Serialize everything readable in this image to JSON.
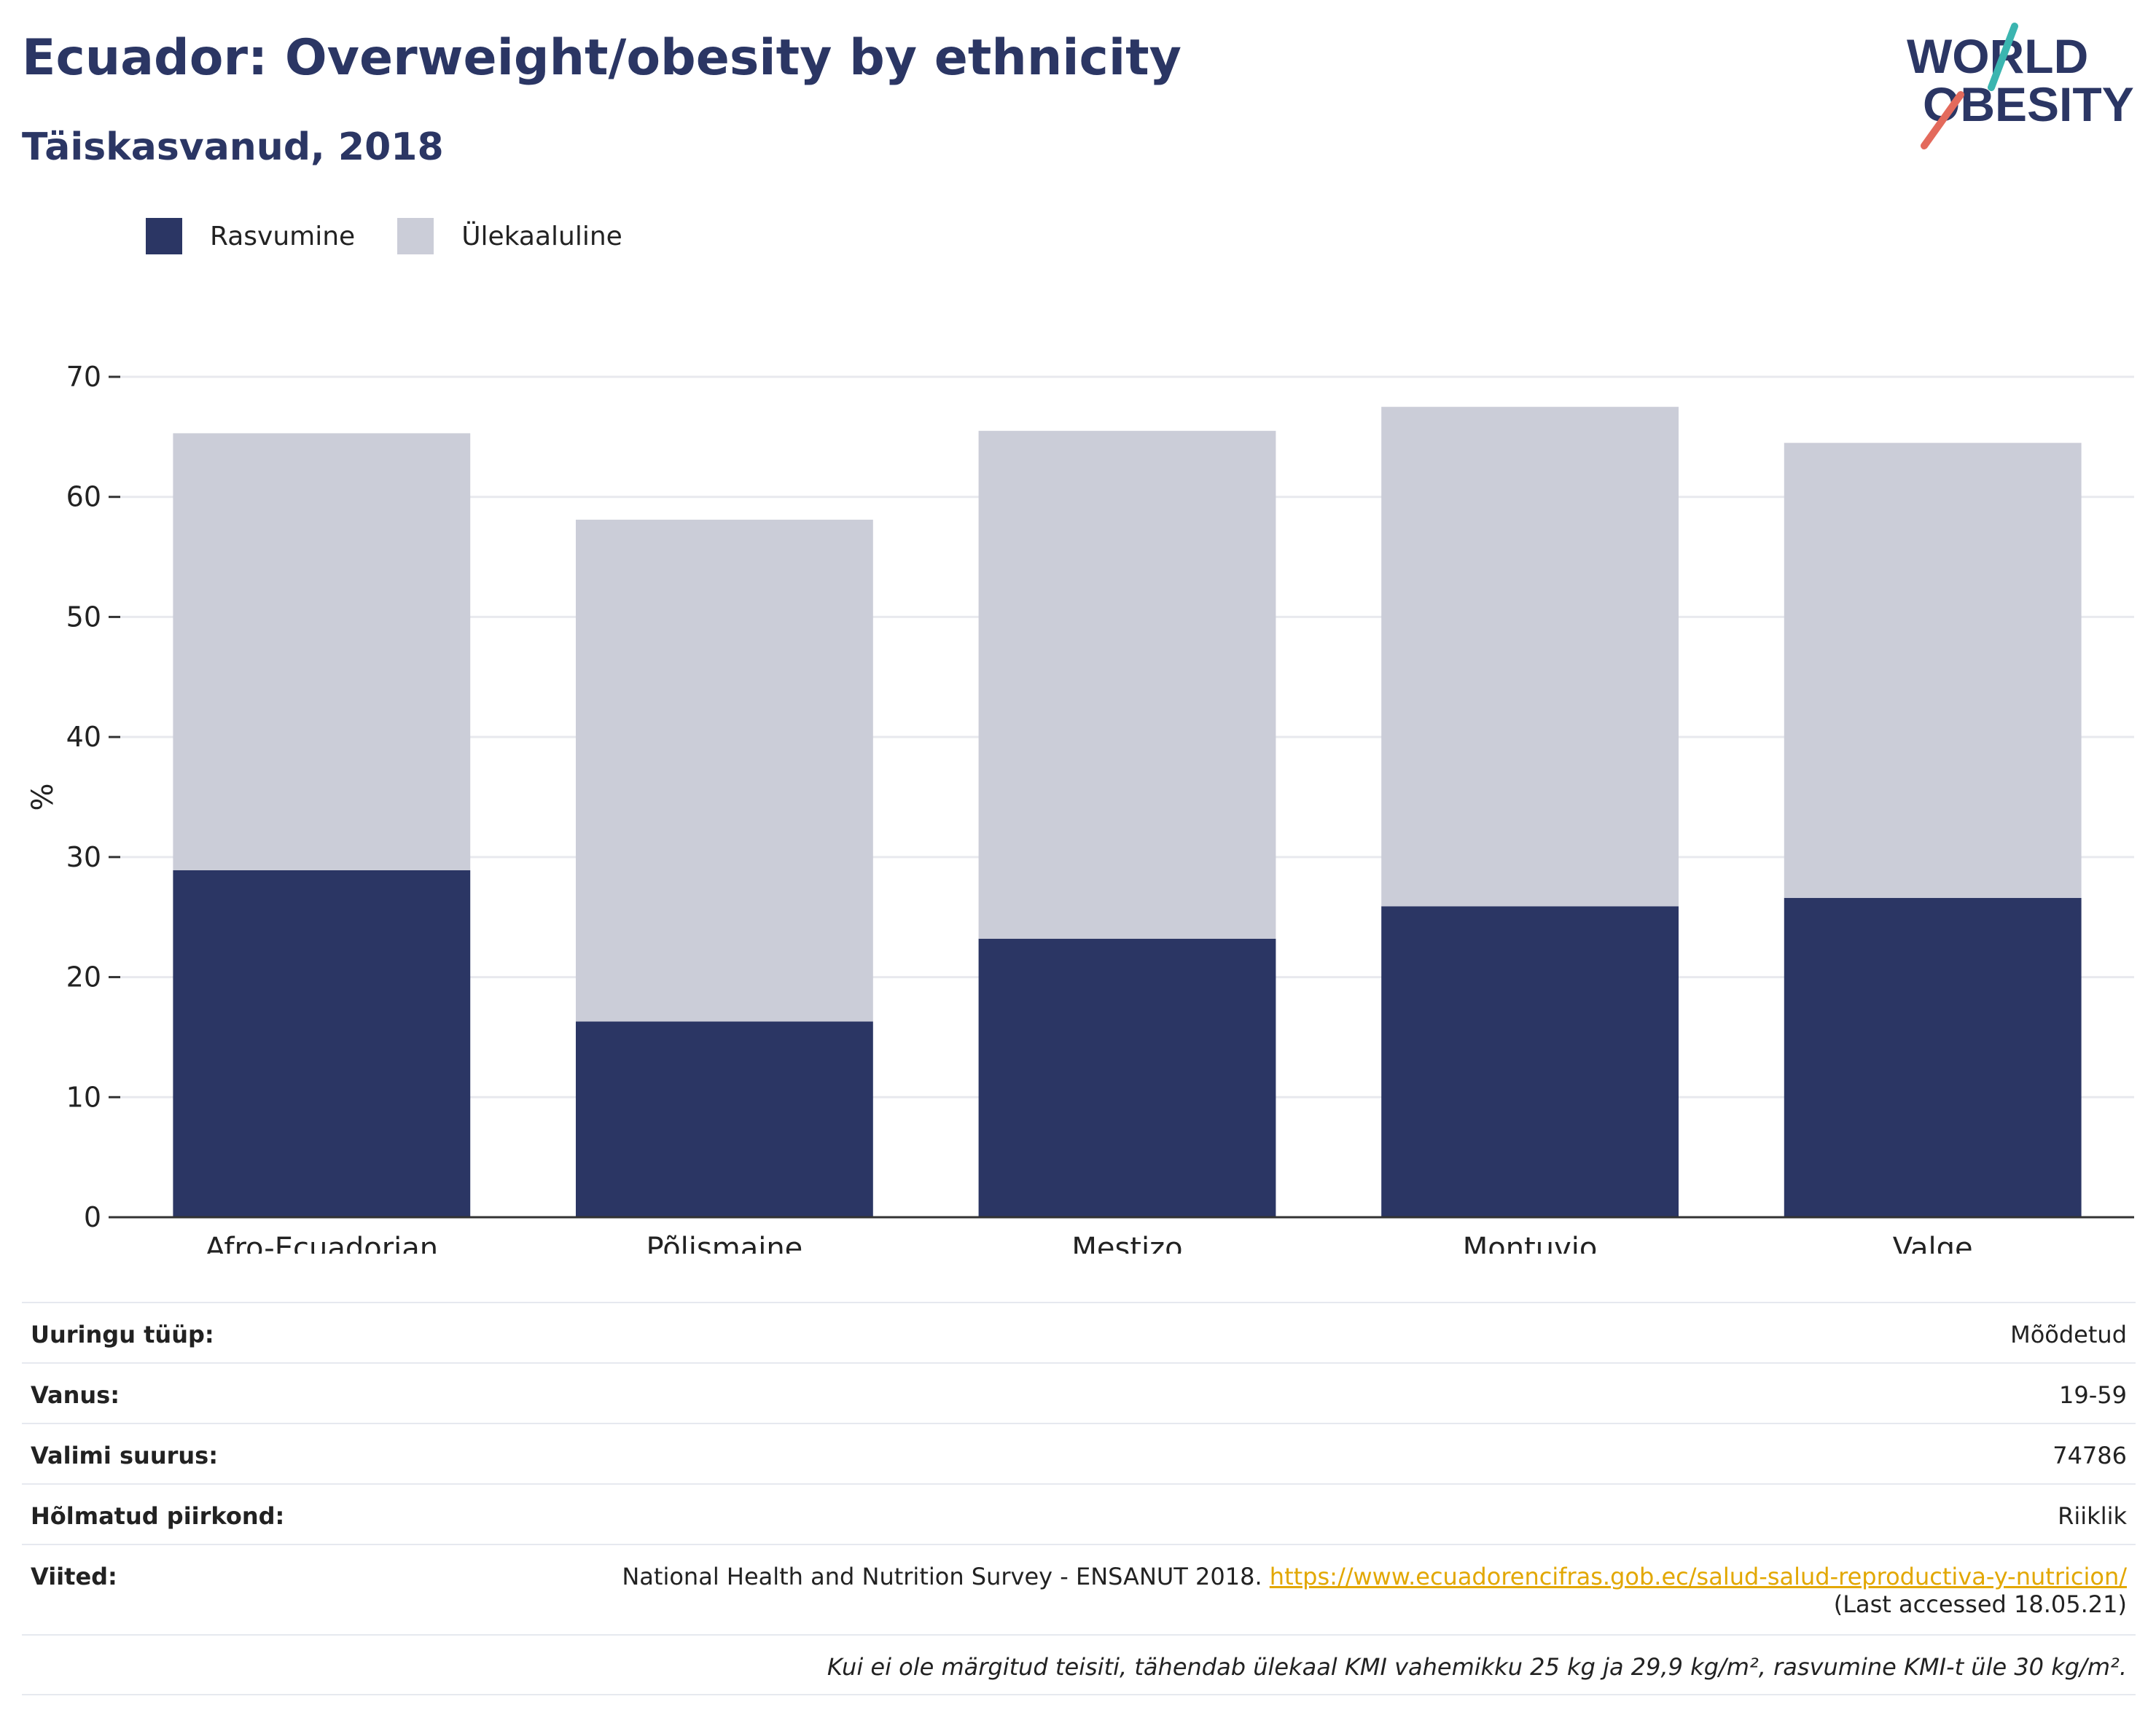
{
  "header": {
    "title": "Ecuador: Overweight/obesity by ethnicity",
    "subtitle": "Täiskasvanud, 2018"
  },
  "logo": {
    "line1": "WORLD",
    "line2": "OBESITY"
  },
  "colors": {
    "obesity": "#2b3664",
    "overweight": "#cbcdd8",
    "title": "#2b3664",
    "link": "#e2a700"
  },
  "chart_data": {
    "type": "bar",
    "stacked": true,
    "categories": [
      "Afro-Ecuadorian",
      "Põlismaine",
      "Mestizo",
      "Montuvio",
      "Valge"
    ],
    "series": [
      {
        "name": "Rasvumine",
        "values": [
          28.9,
          16.3,
          23.2,
          25.9,
          26.6
        ]
      },
      {
        "name": "Ülekaaluline",
        "values": [
          36.4,
          41.8,
          42.3,
          41.6,
          37.9
        ]
      }
    ],
    "ylabel": "%",
    "ylim": [
      0,
      70
    ],
    "yticks": [
      0,
      10,
      20,
      30,
      40,
      50,
      60,
      70
    ],
    "grid": true,
    "legend": "top-left"
  },
  "meta": {
    "rows": [
      {
        "key": "Uuringu tüüp:",
        "value": "Mõõdetud"
      },
      {
        "key": "Vanus:",
        "value": "19-59"
      },
      {
        "key": "Valimi suurus:",
        "value": "74786"
      },
      {
        "key": "Hõlmatud piirkond:",
        "value": "Riiklik"
      }
    ],
    "references": {
      "key": "Viited:",
      "text": "National Health and Nutrition Survey - ENSANUT 2018. ",
      "link": "https://www.ecuadorencifras.gob.ec/salud-salud-reproductiva-y-nutricion/",
      "accessed": "(Last accessed 18.05.21)"
    },
    "note": "Kui ei ole märgitud teisiti, tähendab ülekaal KMI vahemikku 25 kg ja 29,9 kg/m², rasvumine KMI-t üle 30 kg/m²."
  }
}
